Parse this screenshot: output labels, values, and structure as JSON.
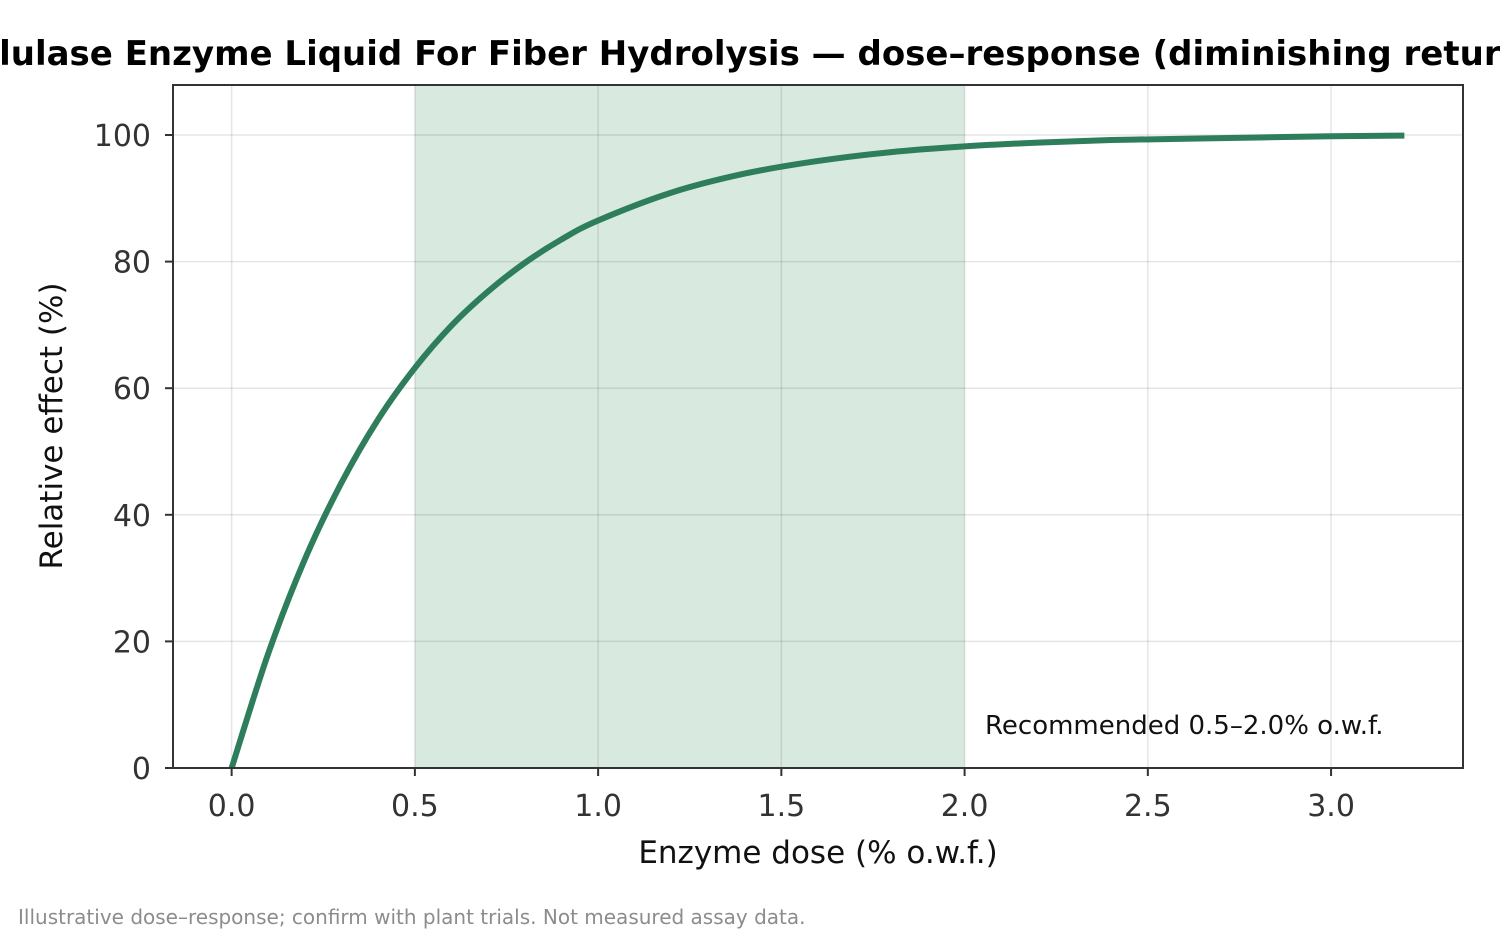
{
  "chart_data": {
    "type": "line",
    "title": "Cellulase Enzyme Liquid For Fiber Hydrolysis — dose–response (diminishing returns)",
    "xlabel": "Enzyme dose (% o.w.f.)",
    "ylabel": "Relative effect (%)",
    "xlim": [
      -0.16,
      3.36
    ],
    "ylim": [
      0,
      100
    ],
    "xticks": [
      "0.0",
      "0.5",
      "1.0",
      "1.5",
      "2.0",
      "2.5",
      "3.0"
    ],
    "yticks": [
      "0",
      "20",
      "40",
      "60",
      "80",
      "100"
    ],
    "grid": true,
    "legend_position": "bottom-right",
    "band": {
      "x_from": 0.5,
      "x_to": 2.0,
      "label": "Recommended 0.5–2.0% o.w.f.",
      "color": "#d8e9e0"
    },
    "series": [
      {
        "color": "#2e7d5b",
        "x": [
          0.0,
          0.1,
          0.2,
          0.3,
          0.4,
          0.5,
          0.6,
          0.7,
          0.8,
          0.9,
          1.0,
          1.2,
          1.4,
          1.6,
          1.8,
          2.0,
          2.2,
          2.4,
          2.6,
          2.8,
          3.0,
          3.2
        ],
        "y": [
          0.0,
          18.1,
          33.0,
          45.1,
          55.1,
          63.2,
          69.9,
          75.3,
          79.8,
          83.5,
          86.5,
          90.9,
          93.9,
          95.9,
          97.3,
          98.2,
          98.8,
          99.2,
          99.4,
          99.6,
          99.8,
          99.9
        ]
      }
    ]
  },
  "footnote": "Illustrative dose–response; confirm with plant trials. Not measured assay data."
}
